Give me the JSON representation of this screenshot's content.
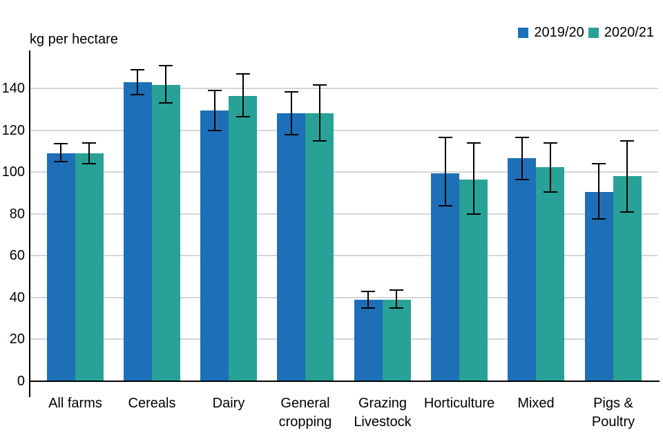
{
  "chart_data": {
    "type": "bar",
    "title": "",
    "ylabel": "kg per hectare",
    "categories": [
      "All farms",
      "Cereals",
      "Dairy",
      "General\ncropping",
      "Grazing\nLivestock",
      "Horticulture",
      "Mixed",
      "Pigs &\nPoultry"
    ],
    "series": [
      {
        "name": "2019/20",
        "color": "#1d70b8",
        "values": [
          109,
          143,
          129.5,
          128,
          39,
          99.5,
          106.5,
          90.5
        ],
        "error_low": [
          105,
          137,
          120,
          118,
          35,
          84,
          96.5,
          77.5
        ],
        "error_high": [
          113.5,
          149,
          139,
          138.5,
          43,
          116.5,
          116.5,
          104
        ]
      },
      {
        "name": "2020/21",
        "color": "#28a197",
        "values": [
          109,
          141.5,
          136.5,
          128,
          39,
          96.5,
          102.5,
          98
        ],
        "error_low": [
          104,
          133,
          126.5,
          115,
          35,
          80,
          90.5,
          81
        ],
        "error_high": [
          114,
          151,
          147,
          141.5,
          43.5,
          114,
          114,
          115
        ]
      }
    ],
    "yticks": [
      0,
      20,
      40,
      60,
      80,
      100,
      120,
      140
    ],
    "ylim": [
      0,
      150
    ],
    "grid": true,
    "error_bars": true,
    "legend_position": "top-right",
    "grid_color": "#d6d6d6",
    "axis_color": "#000000",
    "background": "#ffffff"
  }
}
